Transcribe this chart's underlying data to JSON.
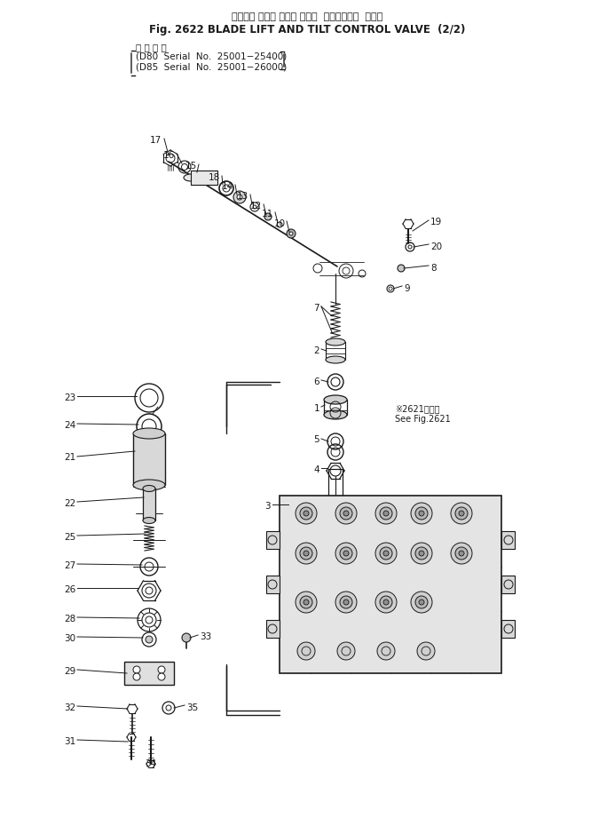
{
  "title_jp": "ブレード リフト および チルト  コントロール  バルブ",
  "title_en": "Fig. 2622 BLADE LIFT AND TILT CONTROL VALVE  (2/2)",
  "subtitle_jp": "適 用 号 機",
  "model1": "(D80  Serial  No.  25001−25400)",
  "model2": "(D85  Serial  No.  25001−26000)",
  "note_jp": "※2621参照図",
  "note_en": "See Fig.2621",
  "bg": "#ffffff",
  "lc": "#1a1a1a"
}
